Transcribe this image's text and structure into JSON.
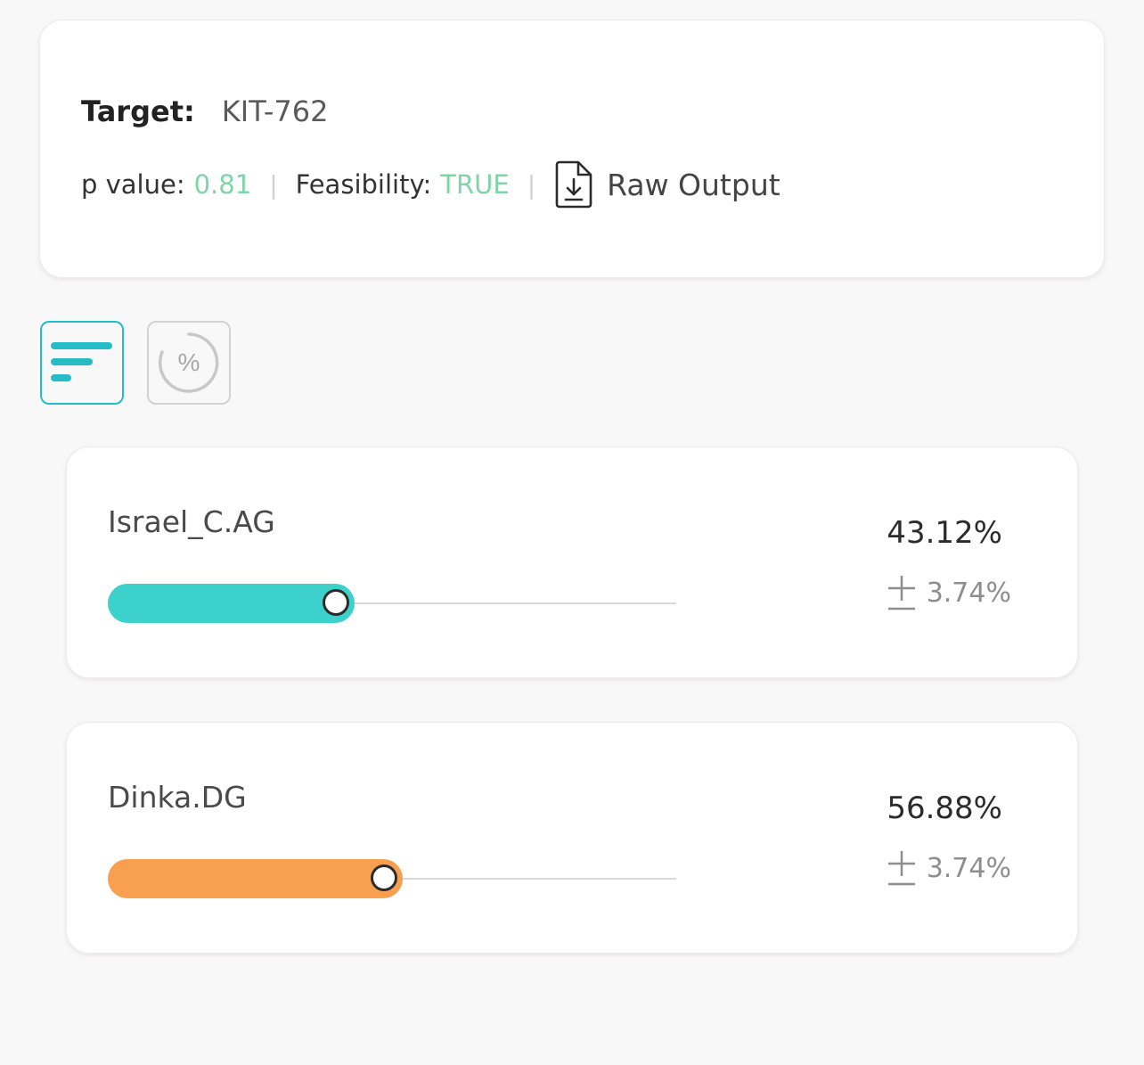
{
  "summary": {
    "target_label": "Target:",
    "target_value": "KIT-762",
    "p_value_label": "p value:",
    "p_value": "0.81",
    "feasibility_label": "Feasibility:",
    "feasibility_value": "TRUE",
    "separator": "|",
    "raw_output_label": "Raw Output",
    "accent_green": "#7fd4a8"
  },
  "view_toggles": {
    "bar_view_icon": "bar-chart-icon",
    "percent_view_icon": "percent-circle-icon",
    "percent_symbol": "%",
    "active_color": "#25bcc8"
  },
  "components": [
    {
      "name": "Israel_C.AG",
      "percent": "43.12%",
      "error": "3.74%",
      "fraction": 0.4312,
      "color": "#3dd1cc",
      "error_icon": "plus-minus-icon"
    },
    {
      "name": "Dinka.DG",
      "percent": "56.88%",
      "error": "3.74%",
      "fraction": 0.5688,
      "color": "#f9a050",
      "error_icon": "plus-minus-icon"
    }
  ]
}
